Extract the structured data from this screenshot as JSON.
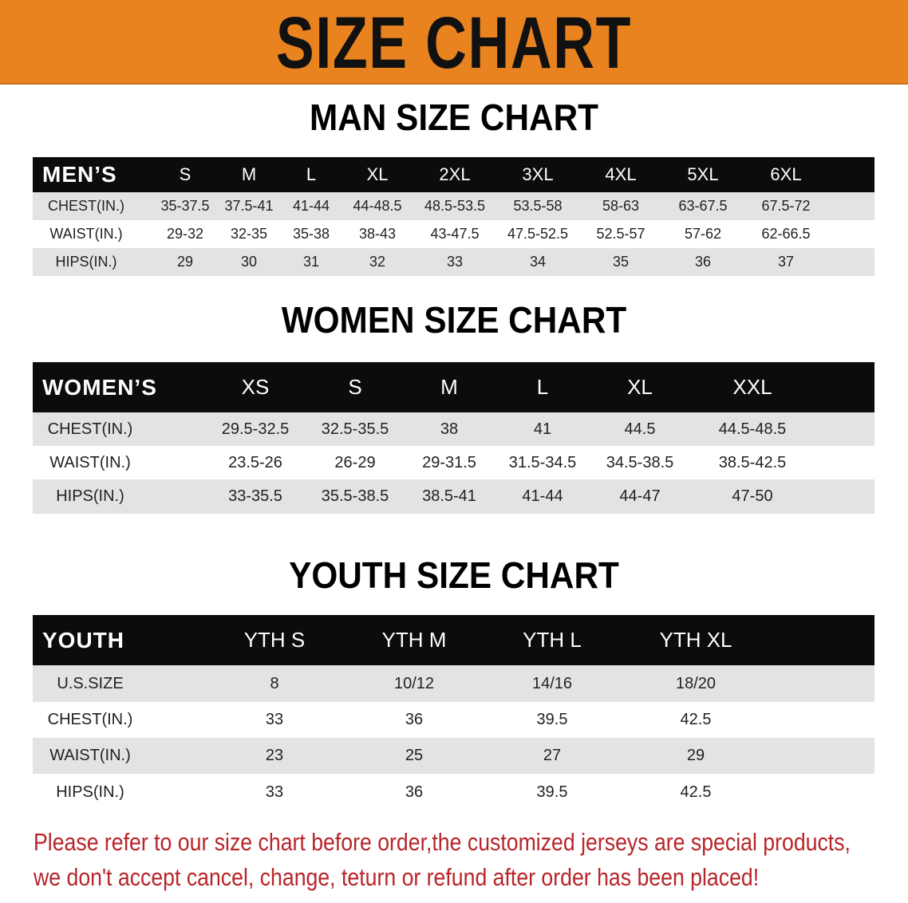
{
  "banner_title": "SIZE CHART",
  "accent_color": "#e8831f",
  "men": {
    "title": "MAN SIZE CHART",
    "header": [
      "MEN’S",
      "S",
      "M",
      "L",
      "XL",
      "2XL",
      "3XL",
      "4XL",
      "5XL",
      "6XL"
    ],
    "rows": [
      [
        "CHEST(IN.)",
        "35-37.5",
        "37.5-41",
        "41-44",
        "44-48.5",
        "48.5-53.5",
        "53.5-58",
        "58-63",
        "63-67.5",
        "67.5-72"
      ],
      [
        "WAIST(IN.)",
        "29-32",
        "32-35",
        "35-38",
        "38-43",
        "43-47.5",
        "47.5-52.5",
        "52.5-57",
        "57-62",
        "62-66.5"
      ],
      [
        "HIPS(IN.)",
        "29",
        "30",
        "31",
        "32",
        "33",
        "34",
        "35",
        "36",
        "37"
      ]
    ]
  },
  "women": {
    "title": "WOMEN SIZE CHART",
    "header": [
      "WOMEN’S",
      "XS",
      "S",
      "M",
      "L",
      "XL",
      "XXL"
    ],
    "rows": [
      [
        "CHEST(IN.)",
        "29.5-32.5",
        "32.5-35.5",
        "38",
        "41",
        "44.5",
        "44.5-48.5"
      ],
      [
        "WAIST(IN.)",
        "23.5-26",
        "26-29",
        "29-31.5",
        "31.5-34.5",
        "34.5-38.5",
        "38.5-42.5"
      ],
      [
        "HIPS(IN.)",
        "33-35.5",
        "35.5-38.5",
        "38.5-41",
        "41-44",
        "44-47",
        "47-50"
      ]
    ]
  },
  "youth": {
    "title": "YOUTH SIZE CHART",
    "header": [
      "YOUTH",
      "YTH S",
      "YTH M",
      "YTH L",
      "YTH XL"
    ],
    "rows": [
      [
        "U.S.SIZE",
        "8",
        "10/12",
        "14/16",
        "18/20"
      ],
      [
        "CHEST(IN.)",
        "33",
        "36",
        "39.5",
        "42.5"
      ],
      [
        "WAIST(IN.)",
        "23",
        "25",
        "27",
        "29"
      ],
      [
        "HIPS(IN.)",
        "33",
        "36",
        "39.5",
        "42.5"
      ]
    ]
  },
  "notice": {
    "line1": "Please refer to our size chart before order,the customized jerseys are special products,",
    "line2": "we don't accept cancel, change, teturn or refund after order has been placed!",
    "color": "#b8252a"
  }
}
